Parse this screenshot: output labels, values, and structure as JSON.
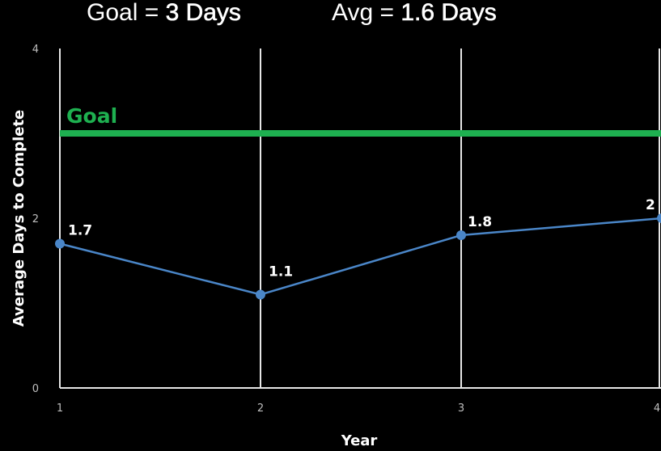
{
  "header": {
    "goal_prefix": "Goal = ",
    "goal_value": "3 Days",
    "avg_prefix": "Avg = ",
    "avg_value": "1.6 Days"
  },
  "chart_data": {
    "type": "line",
    "xlabel": "Year",
    "ylabel": "Average Days to Complete",
    "x": [
      1,
      2,
      3,
      4
    ],
    "xticks": [
      "1",
      "2",
      "3",
      "4"
    ],
    "yticks": [
      "0",
      "2",
      "4"
    ],
    "ylim": [
      0,
      4
    ],
    "xlim": [
      1,
      4
    ],
    "series": [
      {
        "values": [
          1.7,
          1.1,
          1.8,
          2
        ],
        "labels": [
          "1.7",
          "1.1",
          "1.8",
          "2"
        ],
        "color": "#4a86c8"
      }
    ],
    "goal": {
      "label": "Goal",
      "value": 3,
      "color": "#1eb050"
    },
    "grid": "vertical",
    "background": "#000000"
  }
}
